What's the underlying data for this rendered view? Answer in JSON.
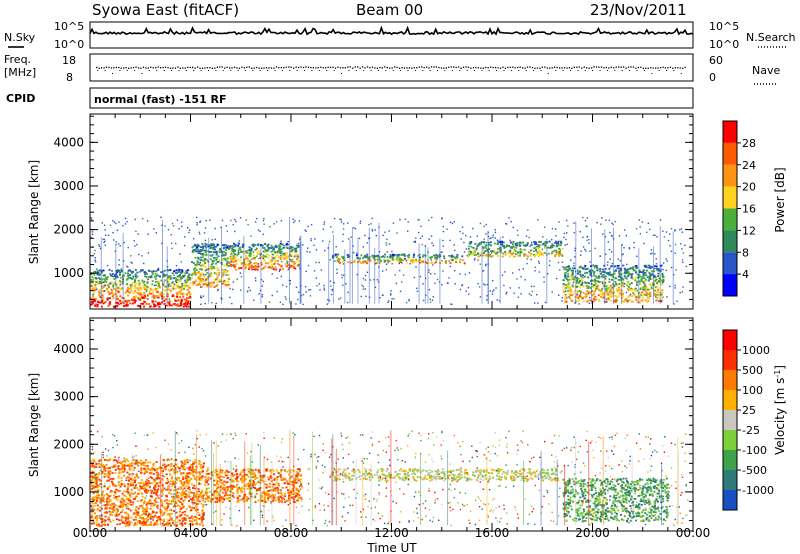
{
  "header": {
    "station": "Syowa East (fitACF)",
    "beam": "Beam 00",
    "date": "23/Nov/2011",
    "mode": "normal (fast) -151 RF"
  },
  "aux_labels": {
    "nsky": "N.Sky",
    "nsearch": "N.Search",
    "freq": "Freq.",
    "freq_unit": "[MHz]",
    "nave": "Nave",
    "cpid": "CPID",
    "noise_top": "10^5",
    "noise_bottom": "10^0",
    "freq_top": "18",
    "freq_bottom": "8",
    "nave_top": "60",
    "nave_bottom": "0"
  },
  "chart_data": [
    {
      "type": "heatmap",
      "title": "Power",
      "ylabel": "Slant Range [km]",
      "xlabel": "",
      "ylim": [
        180,
        4650
      ],
      "yticks": [
        "1000",
        "2000",
        "3000",
        "4000"
      ],
      "xticks": [
        "00:00",
        "04:00",
        "08:00",
        "12:00",
        "16:00",
        "20:00",
        "00:00"
      ],
      "colorbar": {
        "label": "Power [dB]",
        "ticks": [
          "4",
          "8",
          "12",
          "16",
          "20",
          "24",
          "28"
        ],
        "colors": [
          "#0000ff",
          "#2a55c8",
          "#2f8a5a",
          "#4cae3c",
          "#ffd21f",
          "#ff9414",
          "#ff5a00",
          "#ff0000"
        ]
      },
      "echo_regions": [
        {
          "t": [
            0.0,
            4.0
          ],
          "r": [
            250,
            1100
          ],
          "level": 6
        },
        {
          "t": [
            4.0,
            5.5
          ],
          "r": [
            700,
            1700
          ],
          "level": 4
        },
        {
          "t": [
            5.5,
            8.3
          ],
          "r": [
            1100,
            1700
          ],
          "level": 5
        },
        {
          "t": [
            9.6,
            14.9
          ],
          "r": [
            1250,
            1450
          ],
          "level": 4
        },
        {
          "t": [
            15.0,
            18.8
          ],
          "r": [
            1400,
            1750
          ],
          "level": 3
        },
        {
          "t": [
            18.8,
            22.8
          ],
          "r": [
            350,
            1200
          ],
          "level": 4
        }
      ]
    },
    {
      "type": "heatmap",
      "title": "Velocity",
      "ylabel": "Slant Range [km]",
      "xlabel": "Time UT",
      "ylim": [
        180,
        4650
      ],
      "yticks": [
        "1000",
        "2000",
        "3000",
        "4000"
      ],
      "xticks": [
        "00:00",
        "04:00",
        "08:00",
        "12:00",
        "16:00",
        "20:00",
        "00:00"
      ],
      "colorbar": {
        "label": "Velocity [m s^-1]",
        "ticks": [
          "1000",
          "500",
          "100",
          "25",
          "-25",
          "-100",
          "-500",
          "-1000"
        ],
        "colors": [
          "#1a4fc4",
          "#2e7a78",
          "#3fa24a",
          "#7fcf3a",
          "#c8c8c0",
          "#ffb000",
          "#ff7a00",
          "#ff3000",
          "#ff0000"
        ]
      },
      "echo_regions": [
        {
          "t": [
            0.0,
            4.5
          ],
          "r": [
            300,
            1700
          ],
          "level": 6
        },
        {
          "t": [
            4.5,
            8.4
          ],
          "r": [
            800,
            1500
          ],
          "level": 6
        },
        {
          "t": [
            9.6,
            18.8
          ],
          "r": [
            1250,
            1500
          ],
          "level": 4
        },
        {
          "t": [
            18.8,
            23.0
          ],
          "r": [
            400,
            1300
          ],
          "level": 2
        }
      ]
    }
  ]
}
